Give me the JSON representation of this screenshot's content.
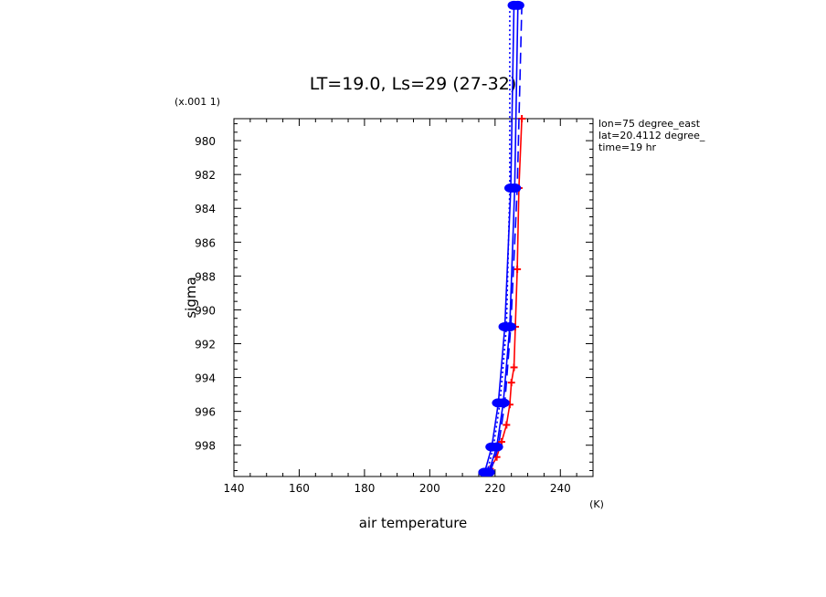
{
  "chart_data": {
    "type": "line",
    "title": "LT=19.0, Ls=29 (27-32)",
    "xlabel": "air temperature",
    "x_unit": "(K)",
    "ylabel": "sigma",
    "y_scale_note": "(x.001 1)",
    "xlim": [
      140,
      250
    ],
    "ylim": [
      978.7,
      999.85
    ],
    "y_inverted": true,
    "x_major_ticks": [
      "140",
      "160",
      "180",
      "200",
      "220",
      "240"
    ],
    "y_major_ticks": [
      "980",
      "982",
      "984",
      "986",
      "988",
      "990",
      "992",
      "994",
      "996",
      "998"
    ],
    "info_lines": [
      "lon=75 degree_east",
      "lat=20.4112 degree_",
      "time=19 hr"
    ],
    "colors": {
      "red": "#ff0000",
      "blue": "#0000ff"
    },
    "series": [
      {
        "color": "#ff0000",
        "style": "solid",
        "marker": "plus",
        "points": [
          [
            216.5,
            999.7
          ],
          [
            218.5,
            999.4
          ],
          [
            220.5,
            998.7
          ],
          [
            222.0,
            997.8
          ],
          [
            223.5,
            996.8
          ],
          [
            224.5,
            995.6
          ],
          [
            225.0,
            994.3
          ],
          [
            225.8,
            993.4
          ],
          [
            226.2,
            991.0
          ],
          [
            226.8,
            987.6
          ],
          [
            227.3,
            982.8
          ],
          [
            228.2,
            978.7
          ]
        ]
      },
      {
        "color": "#0000ff",
        "style": "solid",
        "marker": "circle",
        "points": [
          [
            218.0,
            999.6
          ],
          [
            220.5,
            998.1
          ],
          [
            222.5,
            995.5
          ],
          [
            224.5,
            991.0
          ],
          [
            226.0,
            982.8
          ],
          [
            227.0,
            972.0
          ]
        ]
      },
      {
        "color": "#0000ff",
        "style": "solid",
        "marker": "circle",
        "points": [
          [
            216.8,
            999.6
          ],
          [
            219.0,
            998.1
          ],
          [
            221.0,
            995.5
          ],
          [
            223.0,
            991.0
          ],
          [
            224.8,
            982.8
          ],
          [
            225.8,
            972.0
          ]
        ]
      },
      {
        "color": "#0000ff",
        "style": "dashed",
        "marker": "none",
        "points": [
          [
            218.5,
            999.6
          ],
          [
            221.0,
            998.1
          ],
          [
            223.0,
            995.5
          ],
          [
            224.8,
            991.0
          ],
          [
            226.8,
            982.8
          ],
          [
            228.2,
            972.0
          ]
        ]
      },
      {
        "color": "#0000ff",
        "style": "dotted",
        "marker": "none",
        "points": [
          [
            217.5,
            999.6
          ],
          [
            219.5,
            998.1
          ],
          [
            221.5,
            995.5
          ],
          [
            223.5,
            991.0
          ],
          [
            224.5,
            982.8
          ],
          [
            224.5,
            972.0
          ]
        ]
      }
    ]
  }
}
